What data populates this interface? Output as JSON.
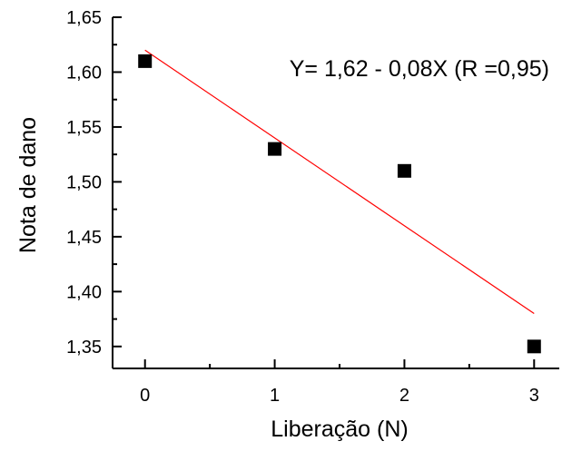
{
  "chart_data": {
    "type": "scatter",
    "title": "",
    "xlabel": "Liberação (N)",
    "ylabel": "Nota de dano",
    "xlim": [
      -0.25,
      3.25
    ],
    "ylim": [
      1.33,
      1.65
    ],
    "x_ticks": [
      0,
      1,
      2,
      3
    ],
    "x_tick_labels": [
      "0",
      "1",
      "2",
      "3"
    ],
    "y_ticks": [
      1.35,
      1.4,
      1.45,
      1.5,
      1.55,
      1.6,
      1.65
    ],
    "y_tick_labels": [
      "1,35",
      "1,40",
      "1,45",
      "1,50",
      "1,55",
      "1,60",
      "1,65"
    ],
    "grid": false,
    "series": [
      {
        "x": [
          0,
          1,
          2,
          3
        ],
        "values": [
          1.61,
          1.53,
          1.51,
          1.35
        ],
        "marker": "square",
        "color": "#000000"
      }
    ],
    "fit_line": {
      "intercept": 1.62,
      "slope": -0.08,
      "x_range": [
        0,
        3
      ],
      "color": "#ff0000"
    },
    "annotation": "Y= 1,62 - 0,08X (R =0,95)"
  }
}
